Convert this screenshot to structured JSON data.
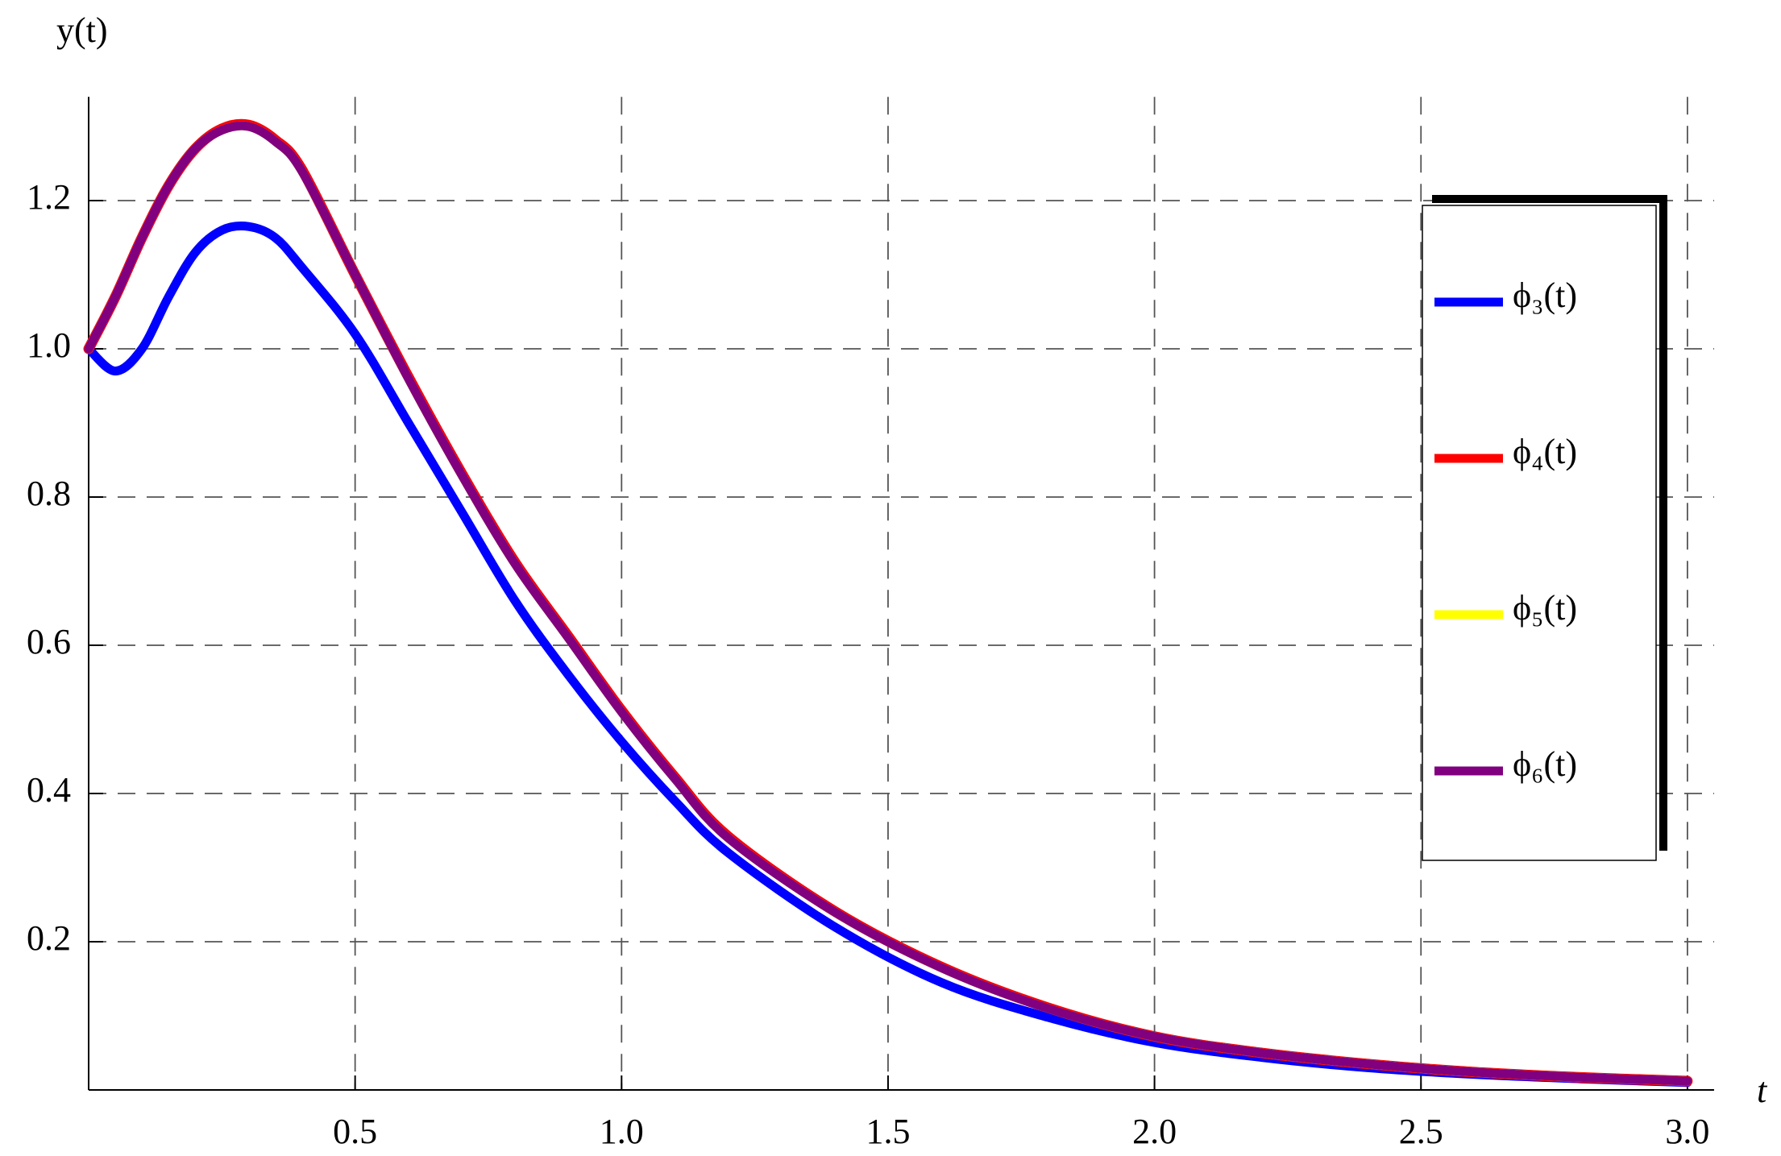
{
  "chart_data": {
    "type": "line",
    "x_label": "t",
    "y_label": "y(t)",
    "x": [
      0,
      0.05,
      0.1,
      0.15,
      0.2,
      0.25,
      0.3,
      0.35,
      0.4,
      0.5,
      0.6,
      0.7,
      0.8,
      0.9,
      1.0,
      1.1,
      1.2,
      1.4,
      1.6,
      1.8,
      2.0,
      2.2,
      2.4,
      2.6,
      2.8,
      3.0
    ],
    "series": [
      {
        "name": "ϕ₃(t)",
        "color": "#0000ff",
        "values": [
          1.0,
          0.97,
          1.0,
          1.07,
          1.13,
          1.16,
          1.165,
          1.15,
          1.11,
          1.02,
          0.9,
          0.78,
          0.66,
          0.56,
          0.47,
          0.39,
          0.32,
          0.22,
          0.145,
          0.098,
          0.064,
          0.044,
          0.03,
          0.021,
          0.015,
          0.01
        ]
      },
      {
        "name": "ϕ₄(t)",
        "color": "#ff0000",
        "values": [
          1.0,
          1.07,
          1.15,
          1.22,
          1.27,
          1.297,
          1.302,
          1.282,
          1.242,
          1.1,
          0.962,
          0.832,
          0.712,
          0.612,
          0.512,
          0.422,
          0.342,
          0.241,
          0.166,
          0.111,
          0.072,
          0.05,
          0.035,
          0.024,
          0.017,
          0.012
        ]
      },
      {
        "name": "ϕ₅(t)",
        "color": "#ffff00",
        "values": [
          1.0,
          1.07,
          1.15,
          1.22,
          1.27,
          1.295,
          1.3,
          1.28,
          1.24,
          1.1,
          0.96,
          0.83,
          0.71,
          0.61,
          0.51,
          0.42,
          0.34,
          0.24,
          0.165,
          0.11,
          0.072,
          0.05,
          0.035,
          0.024,
          0.017,
          0.012
        ]
      },
      {
        "name": "ϕ₆(t)",
        "color": "#800080",
        "values": [
          1.0,
          1.07,
          1.15,
          1.22,
          1.27,
          1.295,
          1.3,
          1.28,
          1.24,
          1.1,
          0.96,
          0.83,
          0.71,
          0.61,
          0.51,
          0.42,
          0.34,
          0.24,
          0.165,
          0.11,
          0.072,
          0.05,
          0.035,
          0.024,
          0.017,
          0.012
        ]
      }
    ],
    "xlim": [
      0,
      3.05
    ],
    "ylim": [
      0,
      1.34
    ],
    "xticks": [
      0.5,
      {
        "value": 1,
        "label": "1.0"
      },
      1.5,
      {
        "value": 2,
        "label": "2.0"
      },
      2.5,
      {
        "value": 3,
        "label": "3.0"
      }
    ],
    "yticks": [
      0.2,
      0.4,
      0.6,
      0.8,
      {
        "value": 1,
        "label": "1.0"
      },
      1.2
    ],
    "grid": true,
    "legend_position": "right"
  }
}
